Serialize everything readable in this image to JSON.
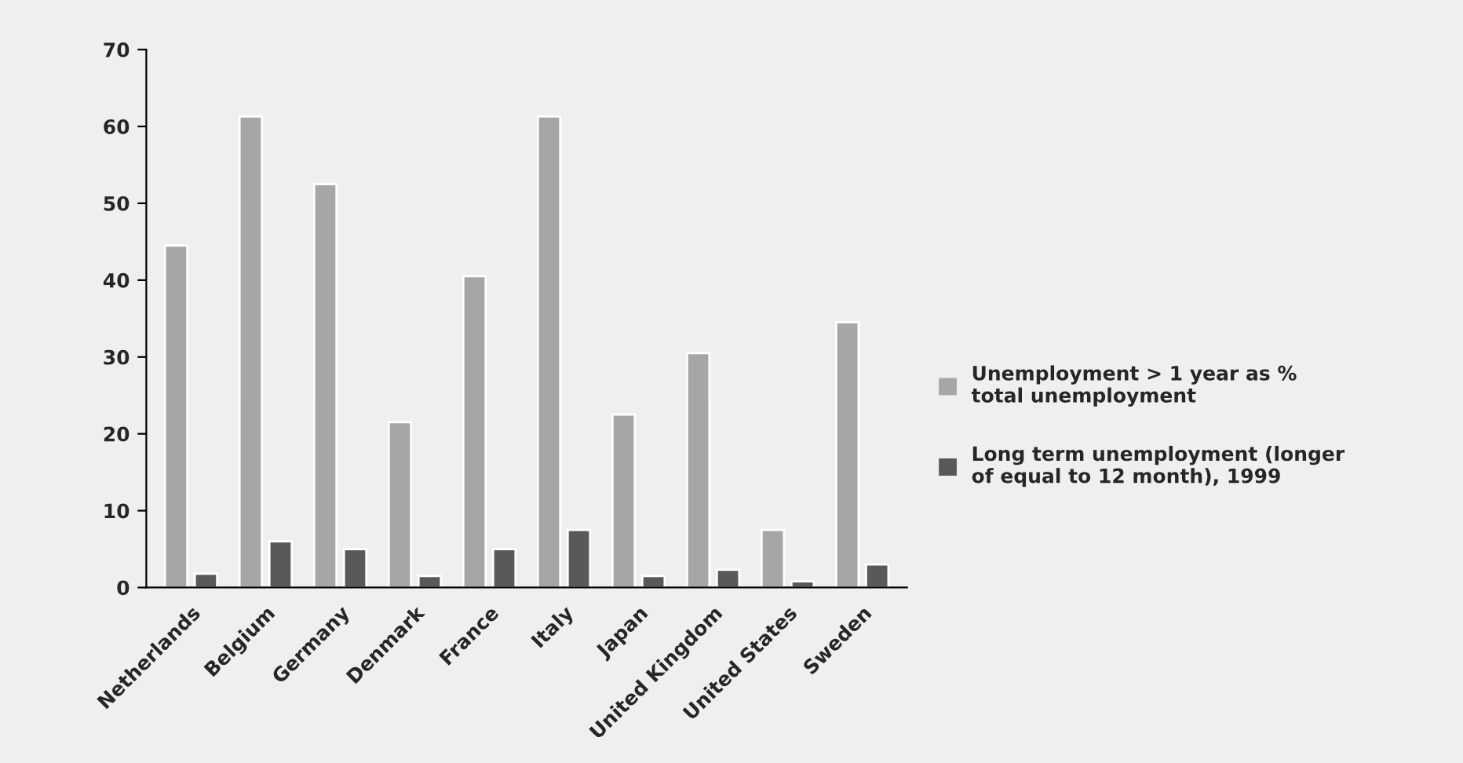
{
  "chart_data": {
    "type": "bar",
    "categories": [
      "Netherlands",
      "Belgium",
      "Germany",
      "Denmark",
      "France",
      "Italy",
      "Japan",
      "United Kingdom",
      "United States",
      "Sweden"
    ],
    "series": [
      {
        "name": "Unemployment > 1 year as % total unemployment",
        "color": "#a6a6a6",
        "values": [
          44.5,
          61.3,
          52.5,
          21.5,
          40.5,
          61.3,
          22.5,
          30.5,
          7.5,
          34.5
        ]
      },
      {
        "name": "Long term unemployment (longer of equal to 12 month), 1999",
        "color": "#595959",
        "values": [
          1.8,
          6,
          5,
          1.5,
          5,
          7.5,
          1.5,
          2.3,
          0.8,
          3
        ]
      }
    ],
    "ylim": [
      0,
      70
    ],
    "yticks": [
      0,
      10,
      20,
      30,
      40,
      50,
      60,
      70
    ],
    "grid": false,
    "legend": "right"
  }
}
